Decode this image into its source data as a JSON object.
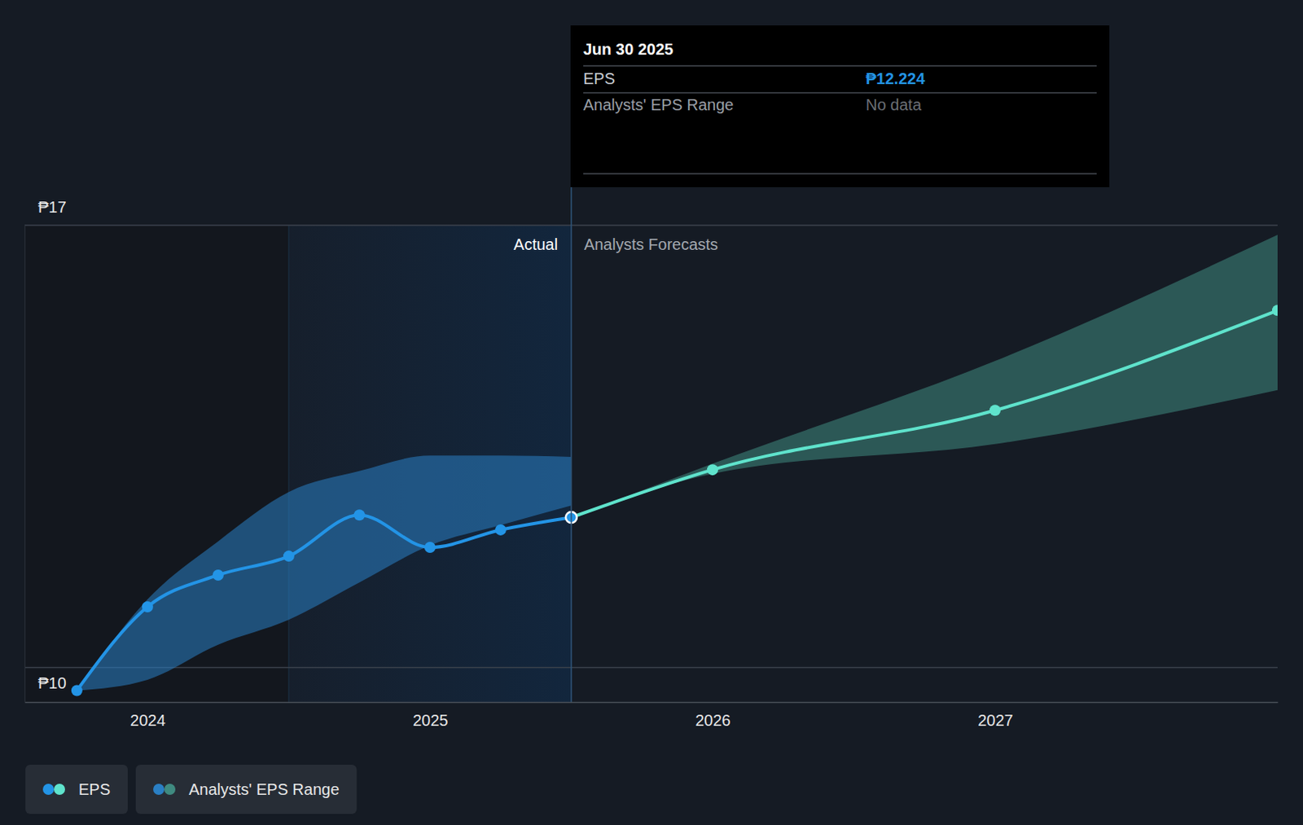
{
  "chart_data": {
    "type": "line",
    "x": [
      2023.75,
      2024,
      2024.25,
      2024.5,
      2024.75,
      2025,
      2025.25,
      2025.5,
      2026,
      2027,
      2028
    ],
    "xlim": [
      2023.565,
      2028
    ],
    "xticks": [
      2024,
      2025,
      2026,
      2027
    ],
    "ylim": [
      9.49,
      16.55
    ],
    "yticks": [
      {
        "value": 10,
        "label": "₱10"
      },
      {
        "value": 16.55,
        "label": "₱17"
      }
    ],
    "grid": true,
    "legend": "bottom-left",
    "series": [
      {
        "name": "EPS",
        "color": "#2394e6",
        "marker": "circle",
        "values": [
          9.66,
          10.9,
          11.37,
          11.65,
          12.26,
          11.78,
          12.04,
          12.224,
          null,
          null,
          null
        ]
      },
      {
        "name": "EPS",
        "color": "#5fe3cc",
        "marker": "circle",
        "values": [
          null,
          null,
          null,
          null,
          null,
          null,
          null,
          12.224,
          12.93,
          13.81,
          15.29
        ]
      }
    ],
    "ranges": [
      {
        "name": "Analysts' EPS Range",
        "color": "#2a7fc4",
        "low": [
          9.66,
          9.82,
          10.34,
          10.71,
          11.26,
          11.81,
          12.11,
          12.4,
          null,
          null,
          null
        ],
        "high": [
          9.66,
          11.01,
          11.87,
          12.6,
          12.91,
          13.14,
          13.14,
          13.12,
          null,
          null,
          null
        ]
      },
      {
        "name": "Analysts' EPS Range",
        "color": "#3f8a80",
        "low": [
          null,
          null,
          null,
          null,
          null,
          null,
          null,
          12.224,
          12.87,
          13.31,
          14.11
        ],
        "high": [
          null,
          null,
          null,
          null,
          null,
          null,
          null,
          12.224,
          13.02,
          14.54,
          16.41
        ]
      }
    ],
    "actual_span": [
      2024.5,
      2025.5
    ],
    "annotations": {
      "actual": "Actual",
      "forecast": "Analysts Forecasts"
    },
    "tooltip": {
      "title": "Jun 30 2025",
      "rows": [
        {
          "label": "EPS",
          "value": "₱12.224"
        },
        {
          "label": "Analysts' EPS Range",
          "value": "No data"
        }
      ]
    }
  }
}
